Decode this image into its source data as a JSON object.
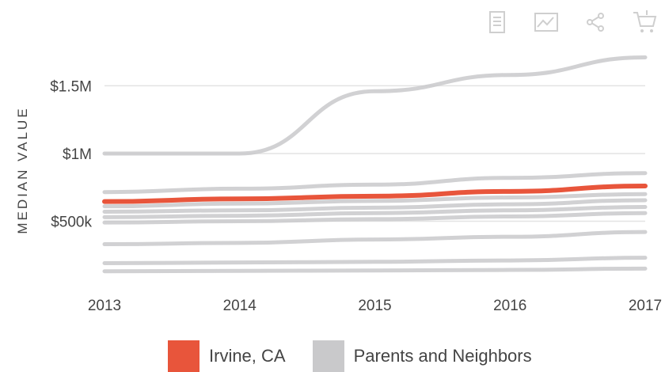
{
  "toolbar": {
    "icons": [
      "document-icon",
      "chart-icon",
      "share-icon",
      "cart-icon"
    ]
  },
  "chart_data": {
    "type": "line",
    "title": "",
    "xlabel": "",
    "ylabel": "MEDIAN VALUE",
    "x": [
      2013,
      2014,
      2015,
      2016,
      2017
    ],
    "x_tick_labels": [
      "2013",
      "2014",
      "2015",
      "2016",
      "2017"
    ],
    "ylim": [
      0,
      1900000
    ],
    "y_ticks": [
      500000,
      1000000,
      1500000
    ],
    "y_tick_labels": [
      "$500k",
      "$1M",
      "$1.5M"
    ],
    "grid": true,
    "legend_position": "bottom",
    "series": [
      {
        "name": "Irvine, CA",
        "color": "#e8553b",
        "highlight": true,
        "values": [
          645000,
          665000,
          685000,
          720000,
          760000
        ]
      },
      {
        "group": "Parents and Neighbors",
        "color": "#c9c9cb",
        "values": [
          1000000,
          1000000,
          1460000,
          1580000,
          1710000
        ]
      },
      {
        "group": "Parents and Neighbors",
        "color": "#c9c9cb",
        "values": [
          715000,
          740000,
          770000,
          820000,
          855000
        ]
      },
      {
        "group": "Parents and Neighbors",
        "color": "#c9c9cb",
        "values": [
          610000,
          630000,
          650000,
          675000,
          700000
        ]
      },
      {
        "group": "Parents and Neighbors",
        "color": "#c9c9cb",
        "values": [
          570000,
          580000,
          600000,
          625000,
          655000
        ]
      },
      {
        "group": "Parents and Neighbors",
        "color": "#c9c9cb",
        "values": [
          530000,
          540000,
          560000,
          580000,
          605000
        ]
      },
      {
        "group": "Parents and Neighbors",
        "color": "#c9c9cb",
        "values": [
          490000,
          500000,
          515000,
          535000,
          560000
        ]
      },
      {
        "group": "Parents and Neighbors",
        "color": "#c9c9cb",
        "values": [
          330000,
          340000,
          365000,
          385000,
          420000
        ]
      },
      {
        "group": "Parents and Neighbors",
        "color": "#c9c9cb",
        "values": [
          190000,
          195000,
          200000,
          210000,
          230000
        ]
      },
      {
        "group": "Parents and Neighbors",
        "color": "#c9c9cb",
        "values": [
          130000,
          133000,
          136000,
          140000,
          150000
        ]
      }
    ]
  },
  "legend": {
    "items": [
      {
        "label": "Irvine, CA",
        "color": "#e8553b"
      },
      {
        "label": "Parents and Neighbors",
        "color": "#c9c9cb"
      }
    ]
  }
}
